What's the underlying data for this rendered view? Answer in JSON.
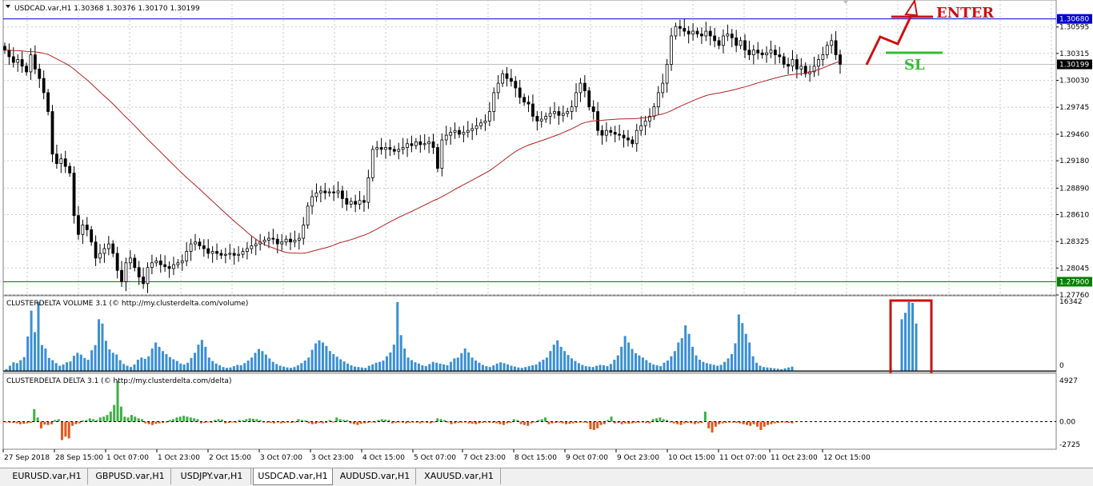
{
  "chart_data": [
    {
      "type": "candlestick",
      "title": "USDCAD.var,H1  1.30368 1.30376 1.30170 1.30199",
      "symbol": "USDCAD.var,H1",
      "ohlc_last": {
        "open": 1.30368,
        "high": 1.30376,
        "low": 1.3017,
        "close": 1.30199
      },
      "price_axis_ticks": [
        "1.30595",
        "1.30315",
        "1.30030",
        "1.29745",
        "1.29460",
        "1.29180",
        "1.28890",
        "1.28610",
        "1.28325",
        "1.28045",
        "1.27760"
      ],
      "ylim": [
        1.2776,
        1.3088
      ],
      "horizontal_levels": [
        {
          "label": "1.30680",
          "value": 1.3068,
          "color": "#0000cc"
        },
        {
          "label": "1.27900",
          "value": 1.279,
          "color": "#008000"
        }
      ],
      "current_price_label": "1.30199",
      "current_price": 1.30199,
      "moving_average_color": "#b22222",
      "candle_closes": [
        1.3035,
        1.3028,
        1.3022,
        1.3025,
        1.3018,
        1.3012,
        1.303,
        1.3015,
        1.3005,
        1.299,
        1.297,
        1.2925,
        1.2915,
        1.292,
        1.2912,
        1.2905,
        1.286,
        1.284,
        1.285,
        1.2845,
        1.2832,
        1.2815,
        1.282,
        1.2825,
        1.283,
        1.282,
        1.2802,
        1.279,
        1.281,
        1.2815,
        1.2805,
        1.2795,
        1.2788,
        1.2805,
        1.281,
        1.2812,
        1.2808,
        1.2806,
        1.2804,
        1.2808,
        1.281,
        1.2812,
        1.2822,
        1.283,
        1.2832,
        1.2828,
        1.2825,
        1.282,
        1.2822,
        1.282,
        1.2818,
        1.2819,
        1.282,
        1.2818,
        1.2819,
        1.2822,
        1.2825,
        1.2828,
        1.283,
        1.2832,
        1.2834,
        1.2836,
        1.2835,
        1.283,
        1.2832,
        1.2835,
        1.2832,
        1.2834,
        1.2836,
        1.285,
        1.287,
        1.288,
        1.2884,
        1.2886,
        1.2884,
        1.2885,
        1.2884,
        1.2886,
        1.2878,
        1.2872,
        1.2875,
        1.2872,
        1.2876,
        1.2874,
        1.29,
        1.293,
        1.2932,
        1.293,
        1.2932,
        1.293,
        1.2928,
        1.293,
        1.2932,
        1.2936,
        1.2934,
        1.2938,
        1.2935,
        1.2936,
        1.2938,
        1.2932,
        1.291,
        1.294,
        1.2945,
        1.2948,
        1.295,
        1.2946,
        1.2948,
        1.295,
        1.2952,
        1.2955,
        1.2958,
        1.296,
        1.297,
        1.299,
        1.3,
        1.301,
        1.3005,
        1.3002,
        1.2995,
        1.2985,
        1.298,
        1.2978,
        1.2965,
        1.296,
        1.2962,
        1.2965,
        1.2968,
        1.297,
        1.2966,
        1.2968,
        1.297,
        1.2975,
        1.299,
        1.3,
        1.2992,
        1.2975,
        1.297,
        1.295,
        1.2945,
        1.295,
        1.2948,
        1.2946,
        1.2945,
        1.2942,
        1.294,
        1.2936,
        1.295,
        1.2955,
        1.296,
        1.2965,
        1.2975,
        1.299,
        1.3,
        1.302,
        1.305,
        1.306,
        1.3058,
        1.3055,
        1.3052,
        1.3055,
        1.3052,
        1.305,
        1.3055,
        1.305,
        1.3045,
        1.304,
        1.305,
        1.3052,
        1.3048,
        1.304,
        1.3045,
        1.3035,
        1.303,
        1.3035,
        1.3032,
        1.303,
        1.3032,
        1.3035,
        1.303,
        1.3028,
        1.302,
        1.3018,
        1.3025,
        1.3015,
        1.3018,
        1.301,
        1.3012,
        1.3018,
        1.3025,
        1.303,
        1.304,
        1.3045,
        1.303,
        1.302
      ],
      "ma_period": 50
    },
    {
      "type": "bar",
      "title": "CLUSTERDELTA VOLUME 3.1 (© http://my.clusterdelta.com/volume)",
      "axis_ticks": [
        "16342",
        "0"
      ],
      "ylim": [
        0,
        16342
      ],
      "color": "#3a8fd4",
      "values": [
        400,
        1200,
        2000,
        1800,
        2500,
        3200,
        8000,
        14000,
        9000,
        16000,
        6000,
        5200,
        3000,
        2500,
        1800,
        1200,
        1500,
        2000,
        2200,
        3500,
        4200,
        3800,
        3000,
        2600,
        4800,
        6000,
        12000,
        11000,
        7000,
        5000,
        4200,
        3800,
        2500,
        1600,
        1200,
        900,
        1500,
        2600,
        3100,
        2800,
        3400,
        5200,
        6600,
        5600,
        4600,
        3900,
        3200,
        2700,
        2300,
        1700,
        1500,
        1900,
        3000,
        4200,
        6100,
        7200,
        5600,
        3100,
        2300,
        1700,
        1300,
        900,
        700,
        800,
        1100,
        1400,
        1300,
        1800,
        2400,
        3100,
        4200,
        5100,
        4600,
        3800,
        2900,
        2100,
        1600,
        1200,
        1000,
        800,
        700,
        900,
        1300,
        1800,
        2400,
        3100,
        4900,
        6400,
        7100,
        6600,
        5800,
        4600,
        3900,
        3300,
        2700,
        2200,
        1700,
        1300,
        1000,
        900,
        800,
        700,
        1200,
        1500,
        1900,
        2100,
        2400,
        3400,
        4300,
        6100,
        16000,
        8300,
        5200,
        3100,
        2500,
        2000,
        1700,
        1300,
        1100,
        1600,
        2100,
        1900,
        1700,
        1500,
        1300,
        2100,
        2900,
        3100,
        4100,
        5200,
        4300,
        3100,
        2400,
        1900,
        1400,
        1100,
        900,
        1300,
        1700,
        2000,
        1800,
        1500,
        1200,
        1000,
        800,
        700,
        900,
        1100,
        1300,
        1500,
        2100,
        2600,
        3100,
        4600,
        6100,
        7100,
        5600,
        4600,
        3700,
        2900,
        2300,
        1800,
        1400,
        1100,
        1000,
        900,
        1200,
        1400,
        1300,
        1100,
        1600,
        2600,
        3600,
        5600,
        8100,
        6600,
        5100,
        4100,
        3600,
        3100,
        2500,
        1900,
        1500,
        1300,
        1100,
        1900,
        2400,
        3400,
        4600,
        6600,
        7600,
        10600,
        8600,
        5600,
        3600,
        2600,
        2100,
        1800,
        1600,
        1400,
        1200,
        1400,
        2100,
        2900,
        3900,
        6400,
        13100,
        11100,
        8600,
        6600,
        3400,
        1900,
        1200,
        900,
        800,
        700,
        600,
        500,
        400,
        600,
        800,
        1000,
        12000,
        13500,
        16000,
        15800,
        11000
      ]
    },
    {
      "type": "bar",
      "title": "CLUSTERDELTA DELTA 3.1 (© http://my.clusterdelta.com/delta)",
      "axis_ticks": [
        "4927",
        "0.00",
        "-2725"
      ],
      "ylim": [
        -2725,
        4927
      ],
      "positive_color": "#3cb043",
      "negative_color": "#e2581c",
      "values": [
        -100,
        -120,
        -150,
        -200,
        -300,
        -250,
        -200,
        -150,
        1500,
        500,
        -800,
        -350,
        -400,
        -300,
        200,
        300,
        -2200,
        -1800,
        -2000,
        -500,
        -300,
        -200,
        150,
        200,
        400,
        300,
        200,
        500,
        600,
        800,
        1200,
        2000,
        4900,
        1800,
        600,
        500,
        800,
        600,
        400,
        300,
        -200,
        -300,
        -400,
        -250,
        -200,
        -150,
        -100,
        200,
        300,
        500,
        600,
        700,
        600,
        500,
        400,
        300,
        -200,
        -150,
        -100,
        -120,
        200,
        300,
        250,
        -200,
        -150,
        -100,
        -120,
        200,
        150,
        300,
        400,
        350,
        300,
        200,
        -100,
        -120,
        -150,
        -200,
        -100,
        -200,
        -150,
        -100,
        -150,
        -100,
        300,
        200,
        150,
        -200,
        -300,
        -250,
        -150,
        -200,
        -150,
        200,
        -100,
        500,
        300,
        200,
        200,
        -200,
        -300,
        -400,
        -250,
        -200,
        -150,
        -100,
        -120,
        200,
        300,
        250,
        200,
        -200,
        -150,
        -100,
        -120,
        -200,
        -150,
        -100,
        -120,
        -200,
        -100,
        -150,
        -200,
        -100,
        400,
        300,
        200,
        -100,
        -300,
        -200,
        -150,
        -120,
        -100,
        -200,
        -250,
        -300,
        -200,
        -150,
        -100,
        -120,
        -150,
        -200,
        -300,
        -400,
        -200,
        -150,
        300,
        200,
        -300,
        -400,
        -500,
        -200,
        -100,
        200,
        300,
        500,
        -300,
        -200,
        -150,
        -120,
        -200,
        -300,
        -250,
        -200,
        -150,
        -100,
        -120,
        -150,
        -900,
        -1000,
        -800,
        -400,
        -300,
        200,
        600,
        -200,
        -150,
        -300,
        -200,
        -250,
        -200,
        -150,
        -120,
        -100,
        -150,
        -200,
        300,
        400,
        500,
        300,
        200,
        -100,
        -200,
        -300,
        -400,
        -200,
        -150,
        -200,
        -300,
        -200,
        -150,
        1200,
        -800,
        -1300,
        -600,
        -300,
        -200,
        -150,
        -100,
        -120,
        -150,
        -200,
        -300,
        -400,
        -500,
        -300,
        -600,
        -1000,
        -600,
        -400,
        -300,
        -200,
        -150,
        -100,
        -120,
        -150,
        -200
      ]
    }
  ],
  "time_axis_labels": [
    "27 Sep 2018",
    "28 Sep 15:00",
    "1 Oct 07:00",
    "1 Oct 23:00",
    "2 Oct 15:00",
    "3 Oct 07:00",
    "3 Oct 23:00",
    "4 Oct 15:00",
    "5 Oct 07:00",
    "7 Oct 23:00",
    "8 Oct 15:00",
    "9 Oct 07:00",
    "9 Oct 23:00",
    "10 Oct 15:00",
    "11 Oct 07:00",
    "11 Oct 23:00",
    "12 Oct 15:00"
  ],
  "annotations": {
    "enter_label": "ENTER",
    "sl_label": "SL",
    "enter_color": "#cc1111",
    "sl_color": "#33bb33",
    "highlight_color": "#cc1111"
  },
  "tabs": [
    {
      "label": "EURUSD.var,H1",
      "active": false
    },
    {
      "label": "GBPUSD.var,H1",
      "active": false
    },
    {
      "label": "USDJPY.var,H1",
      "active": false
    },
    {
      "label": "USDCAD.var,H1",
      "active": true
    },
    {
      "label": "AUDUSD.var,H1",
      "active": false
    },
    {
      "label": "XAUUSD.var,H1",
      "active": false
    }
  ],
  "colors": {
    "grid": "#c8c8c8",
    "candle": "#000000",
    "panel_border": "#808080"
  }
}
